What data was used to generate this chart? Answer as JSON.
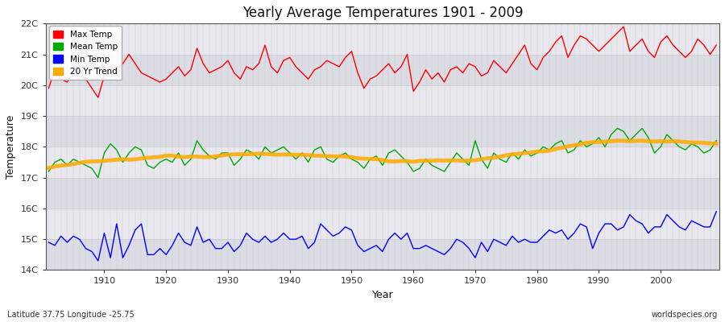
{
  "title": "Yearly Average Temperatures 1901 - 2009",
  "xlabel": "Year",
  "ylabel": "Temperature",
  "subtitle": "Latitude 37.75 Longitude -25.75",
  "credit": "worldspecies.org",
  "year_start": 1901,
  "year_end": 2009,
  "ylim": [
    14,
    22
  ],
  "yticks": [
    14,
    15,
    16,
    17,
    18,
    19,
    20,
    21,
    22
  ],
  "ytick_labels": [
    "14C",
    "15C",
    "16C",
    "17C",
    "18C",
    "19C",
    "20C",
    "21C",
    "22C"
  ],
  "xticks": [
    1910,
    1920,
    1930,
    1940,
    1950,
    1960,
    1970,
    1980,
    1990,
    2000
  ],
  "max_temp": [
    19.9,
    20.5,
    20.2,
    20.1,
    20.4,
    20.3,
    20.2,
    19.9,
    19.6,
    20.3,
    20.6,
    20.5,
    20.7,
    21.0,
    20.7,
    20.4,
    20.3,
    20.2,
    20.1,
    20.2,
    20.4,
    20.6,
    20.3,
    20.5,
    21.2,
    20.7,
    20.4,
    20.5,
    20.6,
    20.8,
    20.4,
    20.2,
    20.6,
    20.5,
    20.7,
    21.3,
    20.6,
    20.4,
    20.8,
    20.9,
    20.6,
    20.4,
    20.2,
    20.5,
    20.6,
    20.8,
    20.7,
    20.6,
    20.9,
    21.1,
    20.4,
    19.9,
    20.2,
    20.3,
    20.5,
    20.7,
    20.4,
    20.6,
    21.0,
    19.8,
    20.1,
    20.5,
    20.2,
    20.4,
    20.1,
    20.5,
    20.6,
    20.4,
    20.7,
    20.6,
    20.3,
    20.4,
    20.8,
    20.6,
    20.4,
    20.7,
    21.0,
    21.3,
    20.7,
    20.5,
    20.9,
    21.1,
    21.4,
    21.6,
    20.9,
    21.3,
    21.6,
    21.5,
    21.3,
    21.1,
    21.3,
    21.5,
    21.7,
    21.9,
    21.1,
    21.3,
    21.5,
    21.1,
    20.9,
    21.4,
    21.6,
    21.3,
    21.1,
    20.9,
    21.1,
    21.5,
    21.3,
    21.0,
    21.3
  ],
  "mean_temp": [
    17.2,
    17.5,
    17.6,
    17.4,
    17.6,
    17.5,
    17.4,
    17.3,
    17.0,
    17.8,
    18.1,
    17.9,
    17.5,
    17.8,
    18.0,
    17.9,
    17.4,
    17.3,
    17.5,
    17.6,
    17.5,
    17.8,
    17.4,
    17.6,
    18.2,
    17.9,
    17.7,
    17.6,
    17.8,
    17.8,
    17.4,
    17.6,
    17.9,
    17.8,
    17.6,
    18.0,
    17.8,
    17.9,
    18.0,
    17.8,
    17.6,
    17.8,
    17.5,
    17.9,
    18.0,
    17.6,
    17.5,
    17.7,
    17.8,
    17.6,
    17.5,
    17.3,
    17.6,
    17.7,
    17.4,
    17.8,
    17.9,
    17.7,
    17.5,
    17.2,
    17.3,
    17.6,
    17.4,
    17.3,
    17.2,
    17.5,
    17.8,
    17.6,
    17.4,
    18.2,
    17.6,
    17.3,
    17.8,
    17.6,
    17.5,
    17.8,
    17.6,
    17.9,
    17.7,
    17.8,
    18.0,
    17.9,
    18.1,
    18.2,
    17.8,
    17.9,
    18.2,
    18.0,
    18.1,
    18.3,
    18.0,
    18.4,
    18.6,
    18.5,
    18.2,
    18.4,
    18.6,
    18.3,
    17.8,
    18.0,
    18.4,
    18.2,
    18.0,
    17.9,
    18.1,
    18.0,
    17.8,
    17.9,
    18.2
  ],
  "min_temp": [
    14.9,
    14.8,
    15.1,
    14.9,
    15.1,
    15.0,
    14.7,
    14.6,
    14.3,
    15.2,
    14.4,
    15.5,
    14.4,
    14.8,
    15.3,
    15.5,
    14.5,
    14.5,
    14.7,
    14.5,
    14.8,
    15.2,
    14.9,
    14.8,
    15.4,
    14.9,
    15.0,
    14.7,
    14.7,
    14.9,
    14.6,
    14.8,
    15.2,
    15.0,
    14.9,
    15.1,
    14.9,
    15.0,
    15.2,
    15.0,
    15.0,
    15.1,
    14.7,
    14.9,
    15.5,
    15.3,
    15.1,
    15.2,
    15.4,
    15.3,
    14.8,
    14.6,
    14.7,
    14.8,
    14.6,
    15.0,
    15.2,
    15.0,
    15.2,
    14.7,
    14.7,
    14.8,
    14.7,
    14.6,
    14.5,
    14.7,
    15.0,
    14.9,
    14.7,
    14.4,
    14.9,
    14.6,
    15.0,
    14.9,
    14.8,
    15.1,
    14.9,
    15.0,
    14.9,
    14.9,
    15.1,
    15.3,
    15.2,
    15.3,
    15.0,
    15.2,
    15.5,
    15.4,
    14.7,
    15.2,
    15.5,
    15.5,
    15.3,
    15.4,
    15.8,
    15.6,
    15.5,
    15.2,
    15.4,
    15.4,
    15.8,
    15.6,
    15.4,
    15.3,
    15.6,
    15.5,
    15.4,
    15.4,
    15.9
  ],
  "colors": {
    "max": "#ff0000",
    "mean": "#00aa00",
    "min": "#0000ff",
    "trend": "#ffaa00",
    "bg_light": "#e8e8ee",
    "bg_dark": "#dcdce4",
    "vgrid": "#c8c8d0",
    "hgrid": "#c8c8d0"
  },
  "legend_labels": [
    "Max Temp",
    "Mean Temp",
    "Min Temp",
    "20 Yr Trend"
  ],
  "trend_linewidth": 3.5,
  "data_linewidth": 1.0,
  "figsize": [
    9.0,
    4.0
  ],
  "dpi": 100
}
